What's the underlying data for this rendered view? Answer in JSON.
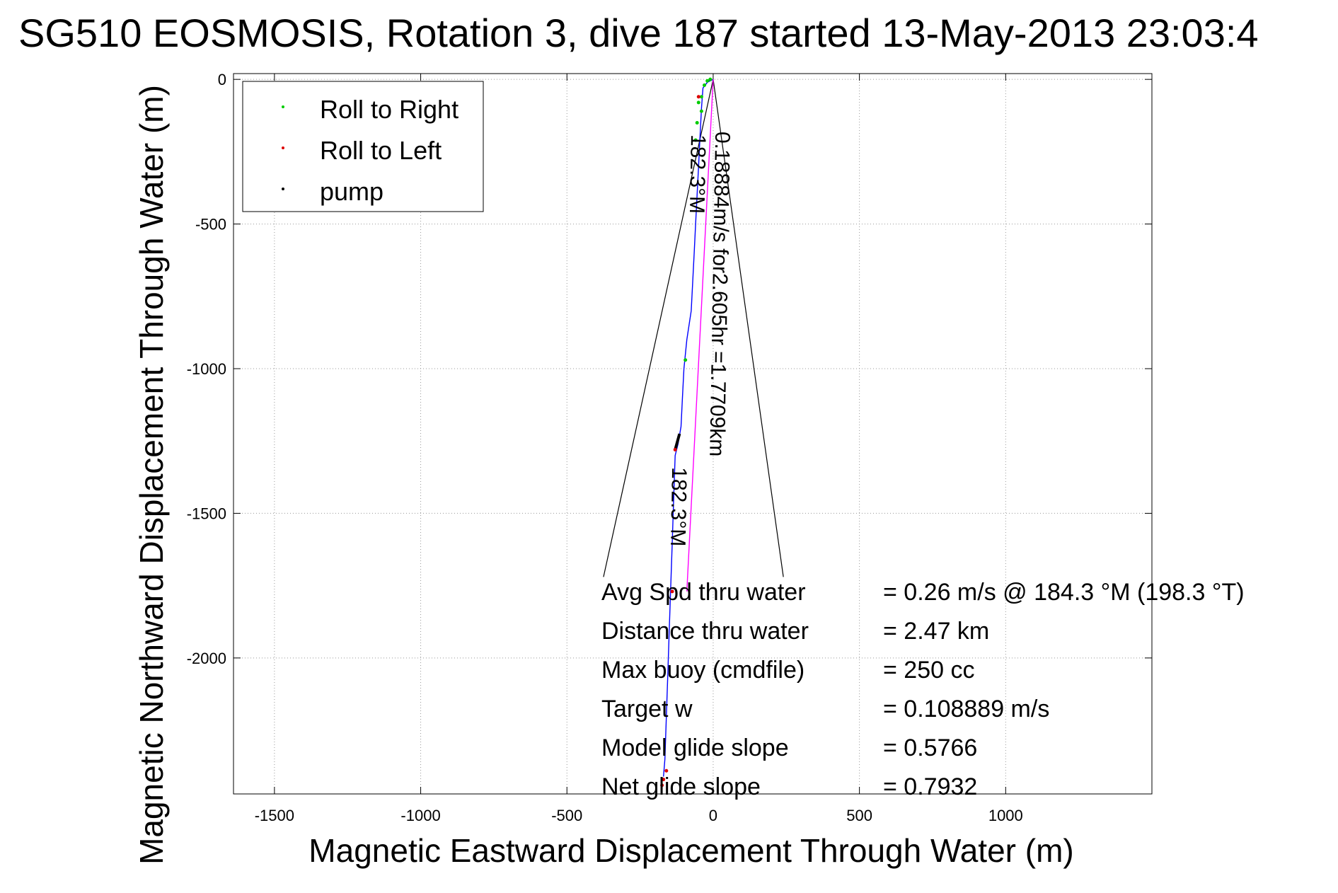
{
  "chart_data": {
    "type": "line",
    "title": "SG510 EOSMOSIS, Rotation 3, dive 187 started 13-May-2013 23:03:4",
    "xlabel": "Magnetic Eastward Displacement Through Water (m)",
    "ylabel": "Magnetic Northward Displacement Through Water (m)",
    "xlim": [
      -1640,
      1500
    ],
    "ylim": [
      -2470,
      20
    ],
    "xticks": [
      -1500,
      -1000,
      -500,
      0,
      500,
      1000
    ],
    "yticks": [
      0,
      -500,
      -1000,
      -1500,
      -2000
    ],
    "grid": true,
    "legend": {
      "position": "top-left",
      "entries": [
        {
          "label": "Roll to Right",
          "color": "#00cc00"
        },
        {
          "label": "Roll to Left",
          "color": "#dd0000"
        },
        {
          "label": "pump",
          "color": "#000000"
        }
      ]
    },
    "series": [
      {
        "role": "track",
        "color": "#0000ff",
        "x": [
          0,
          -20,
          -35,
          -40,
          -45,
          -50,
          -55,
          -60,
          -65,
          -70,
          -75,
          -90,
          -100,
          -105,
          -110,
          -120,
          -130,
          -135,
          -140,
          -145,
          -150,
          -155,
          -160,
          -165,
          -170
        ],
        "y": [
          0,
          -10,
          -30,
          -100,
          -200,
          -300,
          -400,
          -500,
          -600,
          -700,
          -800,
          -900,
          -1000,
          -1100,
          -1200,
          -1260,
          -1300,
          -1450,
          -1600,
          -1750,
          -1900,
          -2050,
          -2200,
          -2350,
          -2410
        ]
      },
      {
        "role": "current-direction",
        "color": "#ff00ff",
        "x": [
          0,
          -90
        ],
        "y": [
          0,
          -1770
        ]
      }
    ],
    "roll_right_points": {
      "x": [
        -10,
        -20,
        -30,
        -40,
        -50,
        -55,
        -60,
        -95,
        -40
      ],
      "y": [
        0,
        -5,
        -20,
        -60,
        -80,
        -150,
        -210,
        -970,
        -110
      ]
    },
    "roll_left_points": {
      "x": [
        -50,
        -130,
        -140,
        -160,
        -170,
        -175
      ],
      "y": [
        -60,
        -1280,
        -1770,
        -2390,
        -2420,
        -2440
      ]
    },
    "pump_segments": [
      {
        "x": [
          -130,
          -115
        ],
        "y": [
          -1280,
          -1225
        ]
      }
    ],
    "fan_lines": [
      {
        "x": [
          0,
          -375
        ],
        "y": [
          0,
          -1720
        ]
      },
      {
        "x": [
          0,
          240
        ],
        "y": [
          0,
          -1720
        ]
      }
    ],
    "annotations": [
      {
        "text": "0.18884m/s for2.605hr =1.7709km",
        "x": 8,
        "y": -180,
        "rotation_deg": 91
      },
      {
        "text": "182.3°M",
        "x": -75,
        "y": -190,
        "rotation_deg": 91
      },
      {
        "text": "182.3°M",
        "x": -140,
        "y": -1340,
        "rotation_deg": 91
      }
    ],
    "stats": [
      {
        "label": "Avg Spd thru water",
        "value": "=  0.26 m/s @ 184.3 °M (198.3 °T)"
      },
      {
        "label": "Distance thru water",
        "value": "=  2.47 km"
      },
      {
        "label": "Max buoy (cmdfile)",
        "value": "= 250 cc"
      },
      {
        "label": "Target w",
        "value": "= 0.108889 m/s"
      },
      {
        "label": "Model glide slope",
        "value": "= 0.5766"
      },
      {
        "label": "Net glide slope",
        "value": "= 0.7932"
      }
    ]
  }
}
